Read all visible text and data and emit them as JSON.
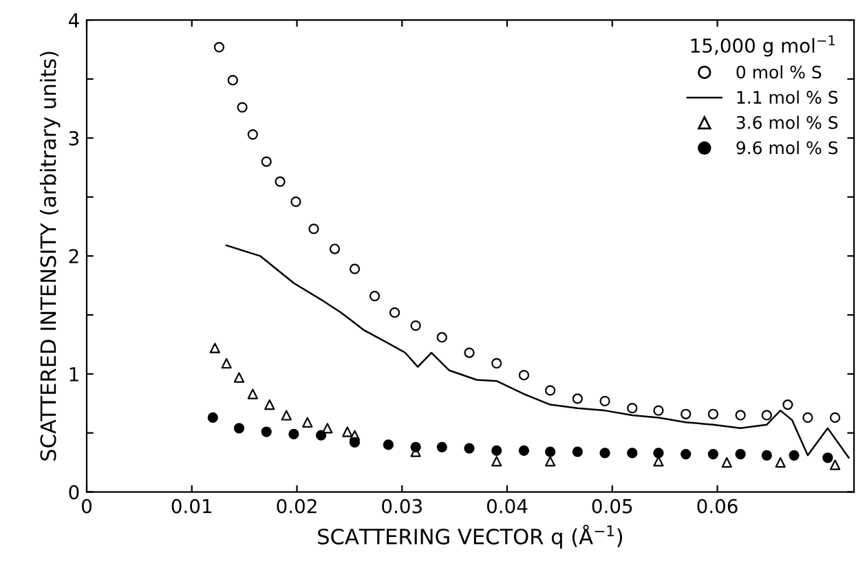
{
  "chart_data": {
    "type": "scatter",
    "xlabel": "SCATTERING VECTOR q (Å$^{−1}$)",
    "ylabel": "SCATTERED INTENSITY (arbitrary units)",
    "legend_title": "15,000 g mol$^{−1}$",
    "legend": "top right",
    "grid": false,
    "xlim": [
      0,
      0.073
    ],
    "ylim": [
      0,
      4
    ],
    "xticks": [
      0,
      0.01,
      0.02,
      0.03,
      0.04,
      0.05,
      0.06
    ],
    "yticks": [
      0,
      {
        "value": 0.5,
        "label": null
      },
      1,
      {
        "value": 1.5,
        "label": null
      },
      2,
      {
        "value": 2.5,
        "label": null
      },
      3,
      {
        "value": 3.5,
        "label": null
      },
      4
    ],
    "series": [
      {
        "name": "0 mol % S",
        "marker": "circle",
        "color": "#000000",
        "x": [
          0.0126,
          0.0139,
          0.0148,
          0.0158,
          0.0171,
          0.0184,
          0.0199,
          0.0216,
          0.0236,
          0.0255,
          0.0274,
          0.0293,
          0.0313,
          0.0338,
          0.0364,
          0.039,
          0.0416,
          0.0441,
          0.0467,
          0.0493,
          0.0519,
          0.0544,
          0.057,
          0.0596,
          0.0622,
          0.0647,
          0.0667,
          0.0686,
          0.0712
        ],
        "values": [
          3.77,
          3.49,
          3.26,
          3.03,
          2.8,
          2.63,
          2.46,
          2.23,
          2.06,
          1.89,
          1.66,
          1.52,
          1.41,
          1.31,
          1.18,
          1.09,
          0.99,
          0.86,
          0.79,
          0.77,
          0.71,
          0.69,
          0.66,
          0.66,
          0.65,
          0.65,
          0.74,
          0.63,
          0.63
        ]
      },
      {
        "name": "1.1 mol % S",
        "type": "line",
        "marker": "none",
        "line_style": "solid",
        "color": "#000000",
        "x": [
          0.0133,
          0.0165,
          0.0197,
          0.0223,
          0.0242,
          0.0264,
          0.0287,
          0.0303,
          0.0315,
          0.0328,
          0.0345,
          0.0371,
          0.039,
          0.0416,
          0.0441,
          0.0467,
          0.0493,
          0.0519,
          0.0544,
          0.057,
          0.0596,
          0.0622,
          0.0647,
          0.066,
          0.0671,
          0.0686,
          0.0705,
          0.0725
        ],
        "values": [
          2.09,
          2.0,
          1.77,
          1.63,
          1.52,
          1.37,
          1.26,
          1.18,
          1.06,
          1.18,
          1.03,
          0.95,
          0.94,
          0.83,
          0.74,
          0.71,
          0.69,
          0.65,
          0.63,
          0.59,
          0.57,
          0.54,
          0.57,
          0.69,
          0.61,
          0.31,
          0.54,
          0.29
        ]
      },
      {
        "name": "3.6 mol % S",
        "marker": "triangle",
        "color": "#000000",
        "x": [
          0.0122,
          0.0133,
          0.0145,
          0.0158,
          0.0174,
          0.019,
          0.021,
          0.0229,
          0.0248,
          0.0255,
          0.0313,
          0.039,
          0.0441,
          0.0544,
          0.0609,
          0.066,
          0.0712
        ],
        "values": [
          1.22,
          1.09,
          0.97,
          0.83,
          0.74,
          0.65,
          0.59,
          0.54,
          0.51,
          0.48,
          0.34,
          0.26,
          0.26,
          0.26,
          0.25,
          0.25,
          0.23
        ]
      },
      {
        "name": "9.6 mol % S",
        "marker": "filled circle",
        "color": "#000000",
        "x": [
          0.012,
          0.0145,
          0.0171,
          0.0197,
          0.0223,
          0.0255,
          0.0287,
          0.0313,
          0.0338,
          0.0364,
          0.039,
          0.0416,
          0.0441,
          0.0467,
          0.0493,
          0.0519,
          0.0544,
          0.057,
          0.0596,
          0.0622,
          0.0647,
          0.0673,
          0.0705
        ],
        "values": [
          0.63,
          0.54,
          0.51,
          0.49,
          0.48,
          0.42,
          0.4,
          0.38,
          0.38,
          0.37,
          0.35,
          0.35,
          0.34,
          0.34,
          0.33,
          0.33,
          0.33,
          0.32,
          0.32,
          0.32,
          0.31,
          0.31,
          0.29
        ]
      }
    ]
  }
}
